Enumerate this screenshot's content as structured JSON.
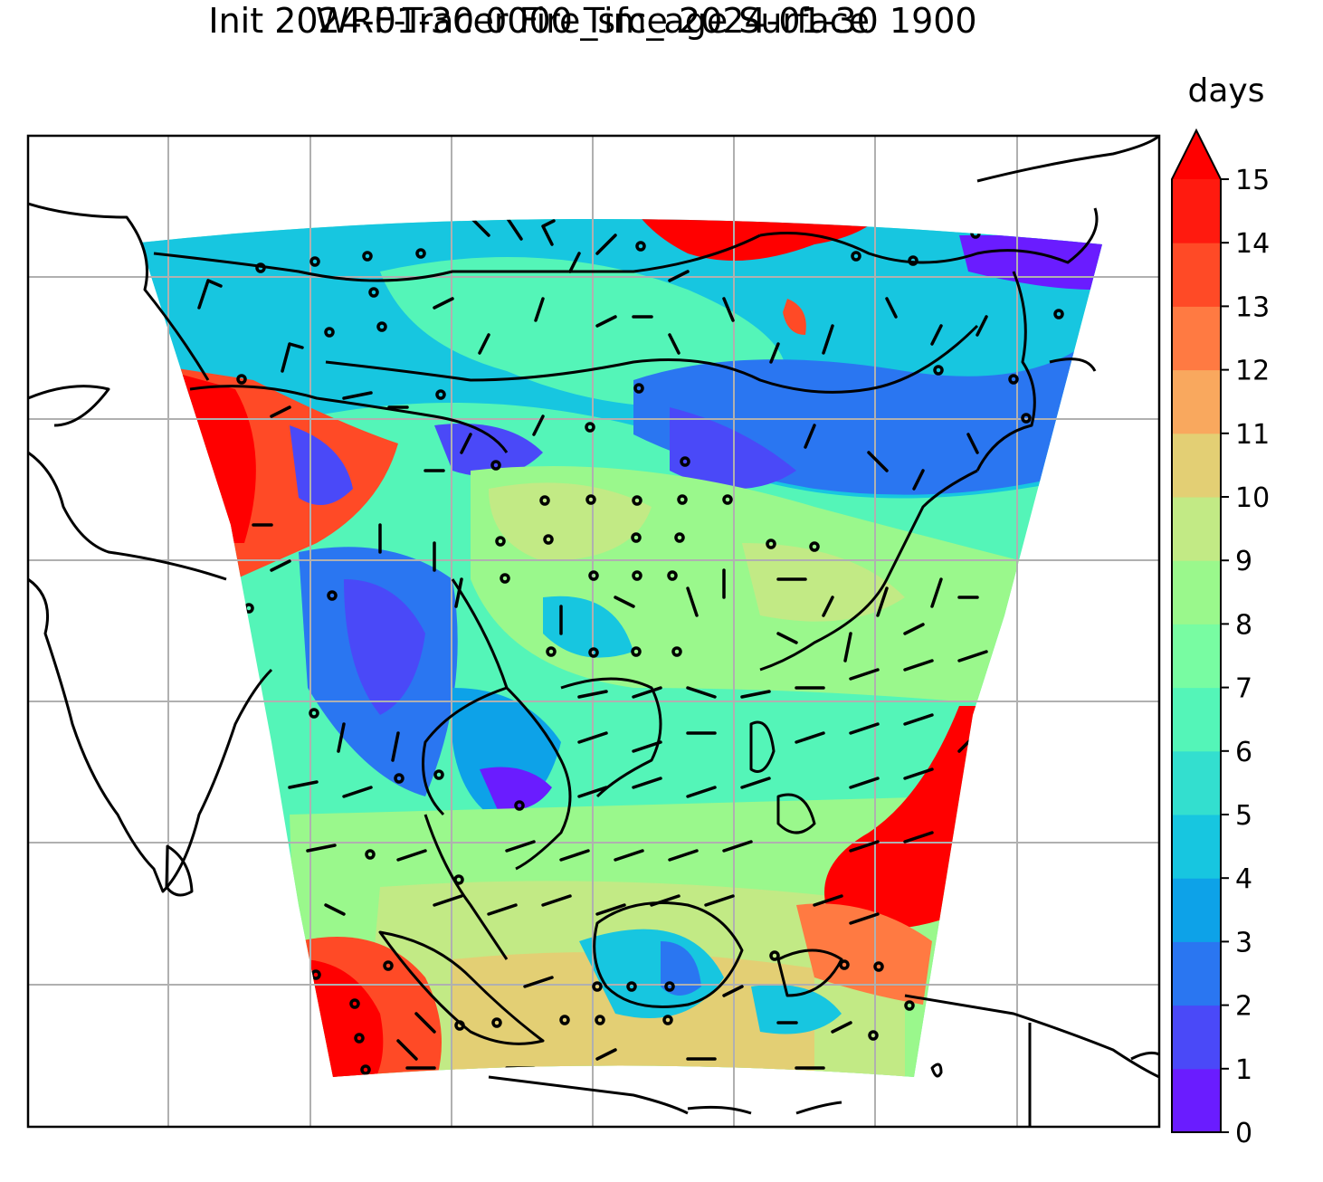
{
  "title": {
    "line1": "WRF-Tracer Fire_sfc_age Surface",
    "line2": "Init 2024-01-30 0000 Time 2024-01-30 1900"
  },
  "colorbar": {
    "label": "days",
    "ticks": [
      "0",
      "1",
      "2",
      "3",
      "4",
      "5",
      "6",
      "7",
      "8",
      "9",
      "10",
      "11",
      "12",
      "13",
      "14",
      "15"
    ],
    "extend": "max",
    "over_color": "#ff0000",
    "colors": [
      "#6a1cff",
      "#4a49f8",
      "#2a76f1",
      "#0da2e8",
      "#17c6e0",
      "#33dfcf",
      "#54f5b8",
      "#78fca2",
      "#9af88c",
      "#c2ea85",
      "#e3cf74",
      "#f9a85e",
      "#ff7a42",
      "#ff4a26",
      "#ff1a0f"
    ]
  },
  "chart_data": {
    "type": "heatmap",
    "variable": "Fire_sfc_age",
    "units": "days",
    "range": [
      0,
      15
    ],
    "extend": "max",
    "overlays": [
      "wind barbs",
      "coastlines",
      "country borders",
      "lat/lon gridlines"
    ],
    "grid": true
  }
}
